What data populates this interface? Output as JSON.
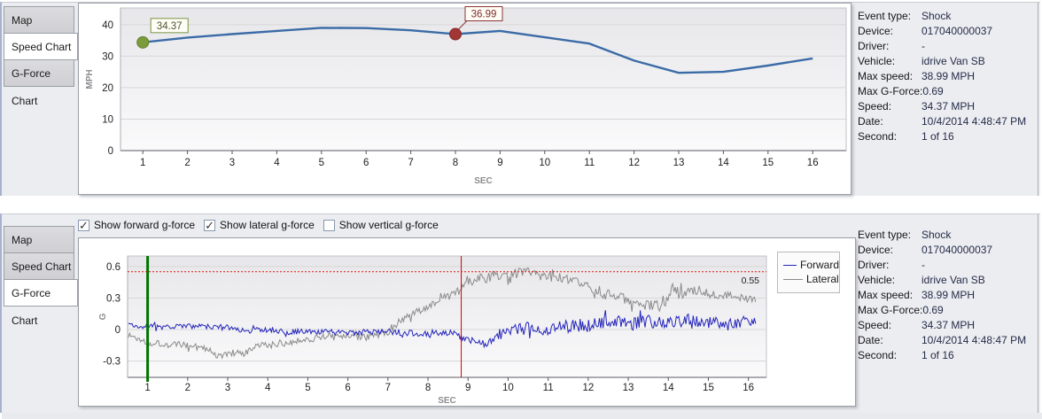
{
  "panels": {
    "top": {
      "tabs": [
        "Map",
        "Speed Chart",
        "G-Force Chart"
      ],
      "active_tab": "Speed Chart"
    },
    "bottom": {
      "tabs": [
        "Map",
        "Speed Chart",
        "G-Force Chart"
      ],
      "active_tab": "G-Force Chart",
      "checkboxes": [
        {
          "label": "Show forward g-force",
          "checked": true
        },
        {
          "label": "Show lateral g-force",
          "checked": true
        },
        {
          "label": "Show vertical g-force",
          "checked": false
        }
      ]
    }
  },
  "event_info": {
    "rows": [
      {
        "label": "Event type:",
        "value": "Shock"
      },
      {
        "label": "Device:",
        "value": "017040000037"
      },
      {
        "label": "Driver:",
        "value": "-"
      },
      {
        "label": "Vehicle:",
        "value": "idrive Van SB"
      },
      {
        "label": "Max speed:",
        "value": "38.99 MPH"
      },
      {
        "label": "Max G-Force:",
        "value": "0.69"
      },
      {
        "label": "Speed:",
        "value": "34.37 MPH"
      },
      {
        "label": "Date:",
        "value": "10/4/2014 4:48:47 PM"
      },
      {
        "label": "Second:",
        "value": "1 of 16"
      }
    ]
  },
  "chart_data": [
    {
      "type": "line",
      "title": "Speed Chart",
      "xlabel": "SEC",
      "ylabel": "MPH",
      "x": [
        1,
        2,
        3,
        4,
        5,
        6,
        7,
        8,
        9,
        10,
        11,
        12,
        13,
        14,
        15,
        16
      ],
      "values": [
        34.37,
        35.9,
        37.0,
        38.0,
        38.99,
        38.9,
        38.2,
        36.99,
        38.0,
        36.0,
        34.0,
        28.6,
        24.7,
        25.0,
        27.0,
        29.3
      ],
      "xlim": [
        0.5,
        16.75
      ],
      "ylim": [
        0,
        45.3
      ],
      "xticks": [
        1,
        2,
        3,
        4,
        5,
        6,
        7,
        8,
        9,
        10,
        11,
        12,
        13,
        14,
        15,
        16
      ],
      "yticks": [
        0,
        10,
        20,
        30,
        40
      ],
      "grid": "horizontal",
      "line_color": "#3b6ba6",
      "markers": [
        {
          "x": 1,
          "y": 34.37,
          "label": "34.37",
          "fill": "#7b9c3c",
          "border": "#647f2e",
          "text_color": "#4c5530",
          "box_border": "#7a9440"
        },
        {
          "x": 8,
          "y": 36.99,
          "label": "36.99",
          "fill": "#a23535",
          "border": "#832a2a",
          "text_color": "#7d2b2b",
          "box_border": "#8a3434"
        }
      ]
    },
    {
      "type": "line",
      "title": "G-Force Chart",
      "xlabel": "SEC",
      "ylabel": "G",
      "xlim": [
        0.5,
        16.45
      ],
      "ylim": [
        -0.455,
        0.7
      ],
      "x_start": 0.52,
      "x_end": 16.2,
      "step": 0.03,
      "xticks": [
        1,
        2,
        3,
        4,
        5,
        6,
        7,
        8,
        9,
        10,
        11,
        12,
        13,
        14,
        15,
        16
      ],
      "yticks": [
        -0.3,
        0,
        0.3,
        0.6
      ],
      "grid": "horizontal",
      "legend": {
        "position": "top-right",
        "entries": [
          "Forward",
          "Lateral"
        ]
      },
      "threshold": {
        "y": 0.55,
        "label": "0.55",
        "color": "#e01010"
      },
      "vlines": [
        {
          "x": 1,
          "color": "#007300",
          "width": 3,
          "name": "event-start-line"
        },
        {
          "x": 8.83,
          "color": "#d40000",
          "width": 1,
          "name": "current-second-line"
        }
      ],
      "series": [
        {
          "name": "Forward",
          "color": "#2323bb",
          "base": [
            [
              0.5,
              0.04
            ],
            [
              1,
              0.03
            ],
            [
              2,
              0.03
            ],
            [
              3,
              0.02
            ],
            [
              3.5,
              -0.01
            ],
            [
              4,
              0.0
            ],
            [
              4.5,
              -0.02
            ],
            [
              5,
              -0.02
            ],
            [
              6,
              -0.03
            ],
            [
              7,
              -0.02
            ],
            [
              8,
              -0.04
            ],
            [
              8.6,
              -0.03
            ],
            [
              9,
              -0.1
            ],
            [
              9.4,
              -0.13
            ],
            [
              9.8,
              -0.04
            ],
            [
              10.2,
              0.0
            ],
            [
              10.6,
              0.02
            ],
            [
              11,
              0.0
            ],
            [
              11.5,
              0.03
            ],
            [
              12,
              0.04
            ],
            [
              12.5,
              0.06
            ],
            [
              13,
              0.05
            ],
            [
              13.5,
              0.08
            ],
            [
              14,
              0.06
            ],
            [
              14.5,
              0.09
            ],
            [
              15,
              0.07
            ],
            [
              15.5,
              0.05
            ],
            [
              16.2,
              0.07
            ]
          ],
          "amp": [
            [
              0.5,
              0.025
            ],
            [
              9,
              0.03
            ],
            [
              10,
              0.06
            ],
            [
              12,
              0.07
            ],
            [
              16.2,
              0.05
            ]
          ]
        },
        {
          "name": "Lateral",
          "color": "#8a8a8a",
          "base": [
            [
              0.5,
              -0.05
            ],
            [
              1,
              -0.12
            ],
            [
              1.5,
              -0.14
            ],
            [
              2,
              -0.15
            ],
            [
              2.5,
              -0.19
            ],
            [
              2.8,
              -0.26
            ],
            [
              3.1,
              -0.22
            ],
            [
              3.4,
              -0.24
            ],
            [
              3.7,
              -0.16
            ],
            [
              4,
              -0.15
            ],
            [
              4.5,
              -0.12
            ],
            [
              5,
              -0.09
            ],
            [
              5.5,
              -0.06
            ],
            [
              6,
              -0.06
            ],
            [
              6.5,
              -0.07
            ],
            [
              7,
              -0.02
            ],
            [
              7.5,
              0.12
            ],
            [
              8,
              0.22
            ],
            [
              8.4,
              0.3
            ],
            [
              8.7,
              0.33
            ],
            [
              8.9,
              0.46
            ],
            [
              9.2,
              0.48
            ],
            [
              9.6,
              0.5
            ],
            [
              10,
              0.52
            ],
            [
              10.4,
              0.55
            ],
            [
              10.8,
              0.52
            ],
            [
              11.2,
              0.5
            ],
            [
              11.6,
              0.45
            ],
            [
              12,
              0.42
            ],
            [
              12.4,
              0.34
            ],
            [
              12.8,
              0.3
            ],
            [
              13.2,
              0.25
            ],
            [
              13.6,
              0.22
            ],
            [
              13.9,
              0.24
            ],
            [
              14.1,
              0.38
            ],
            [
              14.4,
              0.34
            ],
            [
              14.8,
              0.38
            ],
            [
              15.2,
              0.34
            ],
            [
              15.6,
              0.32
            ],
            [
              16.2,
              0.28
            ]
          ],
          "amp": [
            [
              0.5,
              0.035
            ],
            [
              8,
              0.035
            ],
            [
              9,
              0.05
            ],
            [
              11,
              0.05
            ],
            [
              14,
              0.06
            ],
            [
              16.2,
              0.03
            ]
          ]
        }
      ]
    }
  ]
}
